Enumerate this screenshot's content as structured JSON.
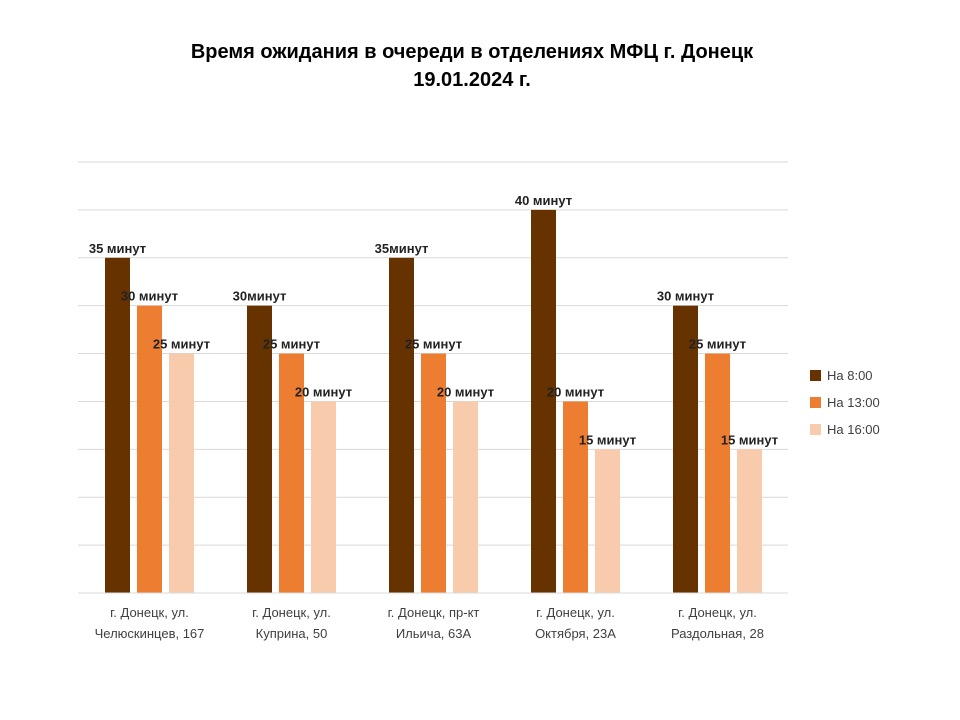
{
  "chart_data": {
    "type": "bar",
    "title": [
      "Время ожидания в очереди в отделениях МФЦ г. Донецк",
      "19.01.2024 г."
    ],
    "categories": [
      [
        "г. Донецк, ул.",
        "Челюскинцев, 167"
      ],
      [
        "г. Донецк, ул.",
        "Куприна, 50"
      ],
      [
        "г. Донецк, пр-кт",
        "Ильича, 63А"
      ],
      [
        "г. Донецк, ул.",
        "Октября, 23А"
      ],
      [
        "г. Донецк, ул.",
        "Раздольная, 28"
      ]
    ],
    "series": [
      {
        "name": "На 8:00",
        "color": "#663300",
        "values": [
          35,
          30,
          35,
          40,
          30
        ],
        "labels": [
          "35 минут",
          "30минут",
          "35минут",
          "40 минут",
          "30 минут"
        ]
      },
      {
        "name": "На 13:00",
        "color": "#ED7D31",
        "values": [
          30,
          25,
          25,
          20,
          25
        ],
        "labels": [
          "30 минут",
          "25 минут",
          "25 минут",
          "20 минут",
          "25 минут"
        ]
      },
      {
        "name": "На 16:00",
        "color": "#F8CBAD",
        "values": [
          25,
          20,
          20,
          15,
          15
        ],
        "labels": [
          "25 минут",
          "20 минут",
          "20 минут",
          "15 минут",
          "15 минут"
        ]
      }
    ],
    "ylim": [
      0,
      45
    ],
    "grid": true,
    "legend": "right"
  }
}
